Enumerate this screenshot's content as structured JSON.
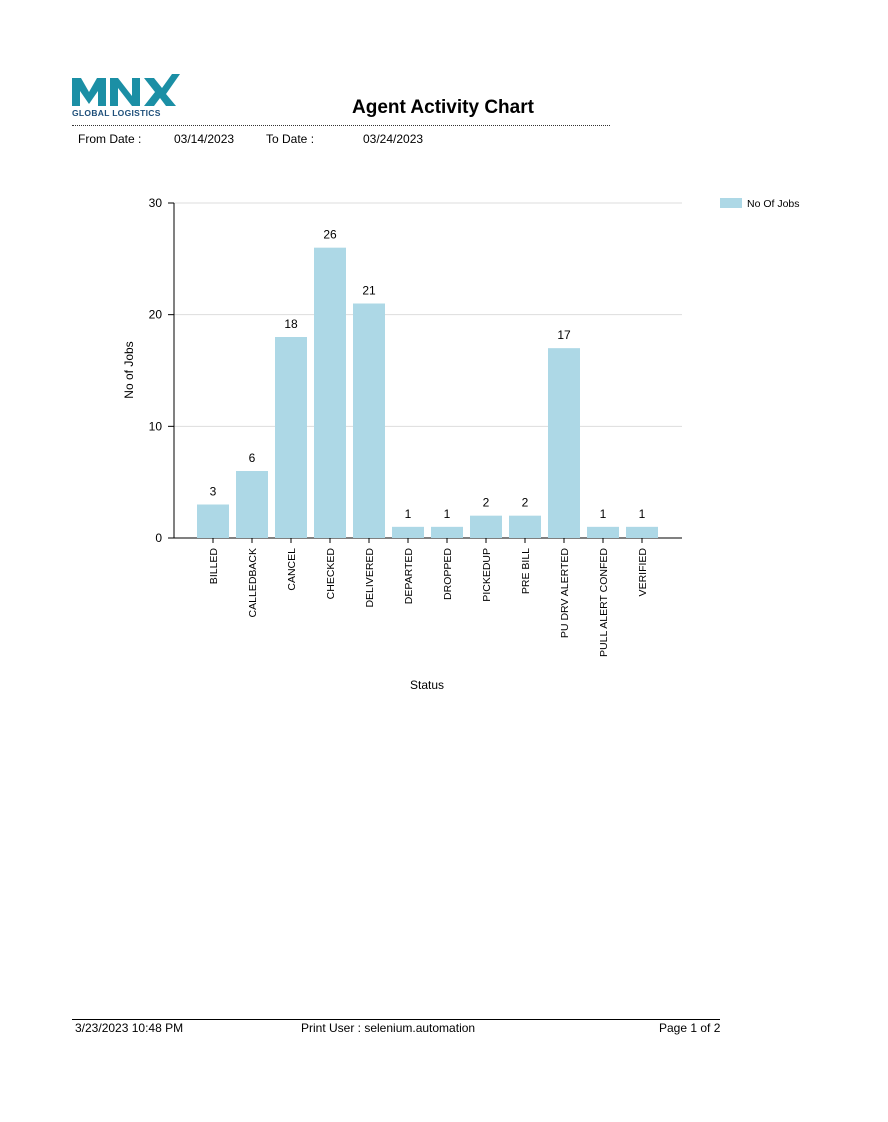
{
  "header": {
    "logo_main": "MNX",
    "logo_sub": "GLOBAL LOGISTICS",
    "title": "Agent Activity Chart",
    "from_label": "From Date :",
    "from_value": "03/14/2023",
    "to_label": "To Date :",
    "to_value": "03/24/2023"
  },
  "footer": {
    "printed_at": "3/23/2023 10:48 PM",
    "print_user": "Print User : selenium.automation",
    "page": "Page 1 of 2"
  },
  "colors": {
    "bar": "#add8e6",
    "logo": "#1b8fa5"
  },
  "chart_data": {
    "type": "bar",
    "categories": [
      "BILLED",
      "CALLEDBACK",
      "CANCEL",
      "CHECKED",
      "DELIVERED",
      "DEPARTED",
      "DROPPED",
      "PICKEDUP",
      "PRE BILL",
      "PU DRV ALERTED",
      "PULL ALERT CONFED",
      "VERIFIED"
    ],
    "series": [
      {
        "name": "No Of Jobs",
        "values": [
          3,
          6,
          18,
          26,
          21,
          1,
          1,
          2,
          2,
          17,
          1,
          1
        ]
      }
    ],
    "xlabel": "Status",
    "ylabel": "No of Jobs",
    "ylim": [
      0,
      30
    ],
    "yticks": [
      0,
      10,
      20,
      30
    ],
    "grid": true,
    "legend": "top-right",
    "data_labels": true
  }
}
